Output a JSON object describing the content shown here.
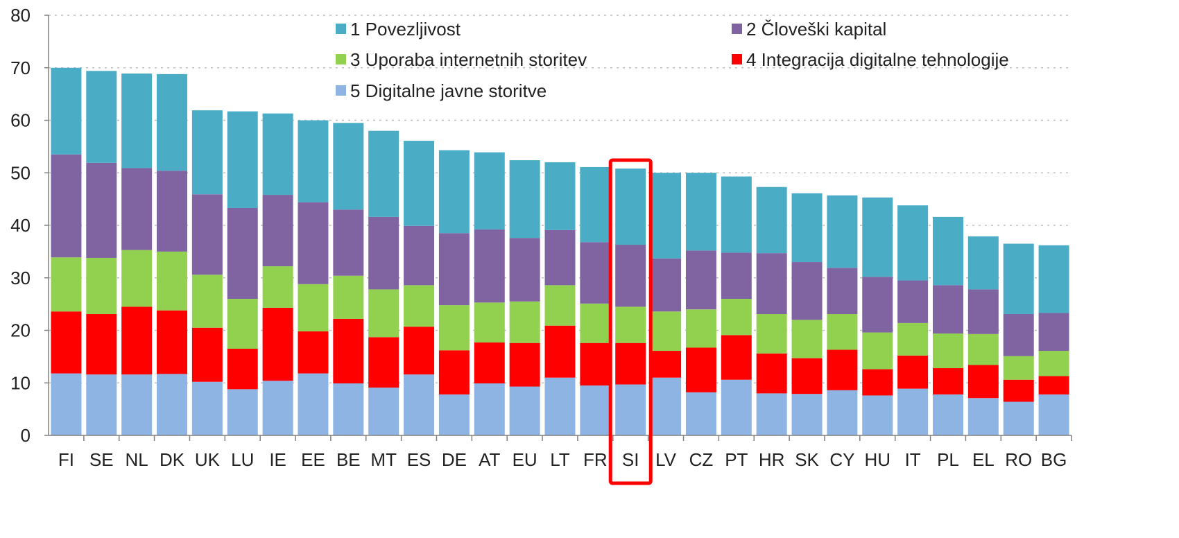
{
  "chart_data": {
    "type": "bar",
    "stacked": true,
    "categories": [
      "FI",
      "SE",
      "NL",
      "DK",
      "UK",
      "LU",
      "IE",
      "EE",
      "BE",
      "MT",
      "ES",
      "DE",
      "AT",
      "EU",
      "LT",
      "FR",
      "SI",
      "LV",
      "CZ",
      "PT",
      "HR",
      "SK",
      "CY",
      "HU",
      "IT",
      "PL",
      "EL",
      "RO",
      "BG"
    ],
    "series": [
      {
        "name": "5 Digitalne javne storitve",
        "color": "#8DB4E2",
        "values": [
          11.8,
          11.6,
          11.6,
          11.7,
          10.2,
          8.8,
          10.4,
          11.8,
          9.9,
          9.1,
          11.6,
          7.8,
          9.9,
          9.3,
          11.0,
          9.5,
          9.7,
          11.0,
          8.2,
          10.6,
          8.0,
          7.9,
          8.6,
          7.6,
          8.9,
          7.8,
          7.1,
          6.4,
          7.8
        ]
      },
      {
        "name": "4 Integracija digitalne tehnologije",
        "color": "#FF0000",
        "values": [
          11.8,
          11.5,
          12.9,
          12.1,
          10.3,
          7.7,
          13.9,
          8.0,
          12.3,
          9.6,
          9.1,
          8.4,
          7.8,
          8.3,
          9.9,
          8.1,
          7.9,
          5.1,
          8.5,
          8.5,
          7.6,
          6.8,
          7.7,
          5.0,
          6.3,
          5.0,
          6.3,
          4.2,
          3.5
        ]
      },
      {
        "name": "3 Uporaba internetnih storitev",
        "color": "#92D050",
        "values": [
          10.3,
          10.7,
          10.8,
          11.2,
          10.1,
          9.5,
          7.9,
          9.0,
          8.2,
          9.1,
          7.9,
          8.6,
          7.6,
          7.9,
          7.7,
          7.5,
          6.9,
          7.5,
          7.3,
          6.9,
          7.5,
          7.3,
          6.8,
          7.0,
          6.2,
          6.6,
          5.9,
          4.5,
          4.8
        ]
      },
      {
        "name": "2 Človeški kapital",
        "color": "#8064A2",
        "values": [
          19.6,
          18.1,
          15.6,
          15.4,
          15.3,
          17.3,
          13.6,
          15.6,
          12.6,
          13.8,
          11.3,
          13.7,
          13.9,
          12.1,
          10.5,
          11.7,
          11.8,
          10.1,
          11.2,
          8.8,
          11.6,
          11.0,
          8.8,
          10.6,
          8.1,
          9.2,
          8.5,
          8.0,
          7.2
        ]
      },
      {
        "name": "1 Povezljivost",
        "color": "#4BACC6",
        "values": [
          16.5,
          17.5,
          18.0,
          18.4,
          16.0,
          18.4,
          15.5,
          15.6,
          16.5,
          16.4,
          16.2,
          15.8,
          14.7,
          14.8,
          12.9,
          14.3,
          14.5,
          16.3,
          14.8,
          14.5,
          12.6,
          13.1,
          13.8,
          15.1,
          14.3,
          13.0,
          10.1,
          13.4,
          12.9
        ]
      }
    ],
    "legend_order": [
      {
        "label": "1 Povezljivost",
        "color": "#4BACC6"
      },
      {
        "label": "2 Človeški kapital",
        "color": "#8064A2"
      },
      {
        "label": "3 Uporaba internetnih storitev",
        "color": "#92D050"
      },
      {
        "label": "4 Integracija digitalne tehnologije",
        "color": "#FF0000"
      },
      {
        "label": "5 Digitalne javne storitve",
        "color": "#8DB4E2"
      }
    ],
    "ylim": [
      0,
      80
    ],
    "yticks": [
      0,
      10,
      20,
      30,
      40,
      50,
      60,
      70,
      80
    ],
    "grid": true,
    "legend_position": "top",
    "highlight": {
      "category": "SI",
      "color": "#FF0000"
    },
    "title": "",
    "xlabel": "",
    "ylabel": ""
  }
}
